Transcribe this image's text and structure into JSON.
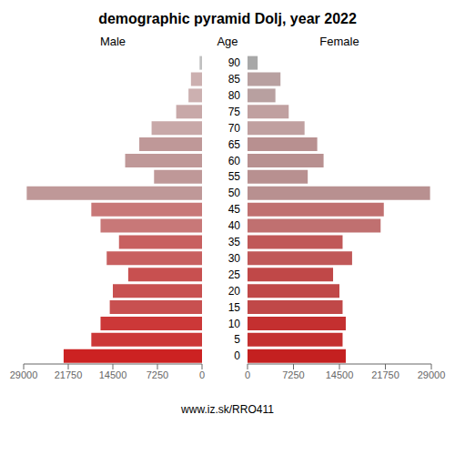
{
  "chart_data": {
    "type": "bar",
    "orientation": "horizontal",
    "title": "demographic pyramid Dolj, year 2022",
    "ylabel": "Age",
    "annotations": [
      "www.iz.sk/RRO411"
    ],
    "categories": [
      "90",
      "85",
      "80",
      "75",
      "70",
      "65",
      "60",
      "55",
      "50",
      "45",
      "40",
      "35",
      "30",
      "25",
      "20",
      "15",
      "10",
      "5",
      "0"
    ],
    "series": [
      {
        "name": "Male",
        "colors": [
          "#c0c0c0",
          "#ccb0b0",
          "#ccb0b0",
          "#c8a8a8",
          "#c8a8a8",
          "#bf9898",
          "#bf9898",
          "#bf9898",
          "#bf9898",
          "#c87878",
          "#c87878",
          "#c86060",
          "#c86060",
          "#c85050",
          "#c85050",
          "#c85050",
          "#cc3838",
          "#cc3838",
          "#cc2222"
        ],
        "values": [
          400,
          1800,
          2200,
          4200,
          8200,
          10200,
          12500,
          7800,
          28500,
          18000,
          16500,
          13500,
          15500,
          12000,
          14500,
          15000,
          16500,
          18000,
          22500
        ]
      },
      {
        "name": "Female",
        "colors": [
          "#a8a8a8",
          "#b8a0a0",
          "#b8a0a0",
          "#c0a0a0",
          "#c0a0a0",
          "#b89090",
          "#b89090",
          "#b89090",
          "#b89090",
          "#c07070",
          "#c07070",
          "#c05858",
          "#c05858",
          "#c04848",
          "#c04848",
          "#c04848",
          "#c43030",
          "#c43030",
          "#c42020"
        ],
        "values": [
          1600,
          5200,
          4400,
          6500,
          9000,
          11000,
          12000,
          9500,
          28800,
          21500,
          21000,
          15000,
          16500,
          13500,
          14500,
          15000,
          15500,
          15000,
          15500
        ]
      }
    ],
    "xlim": [
      0,
      29000
    ],
    "xticks": [
      0,
      7250,
      14500,
      21750,
      29000
    ],
    "grid": false
  }
}
